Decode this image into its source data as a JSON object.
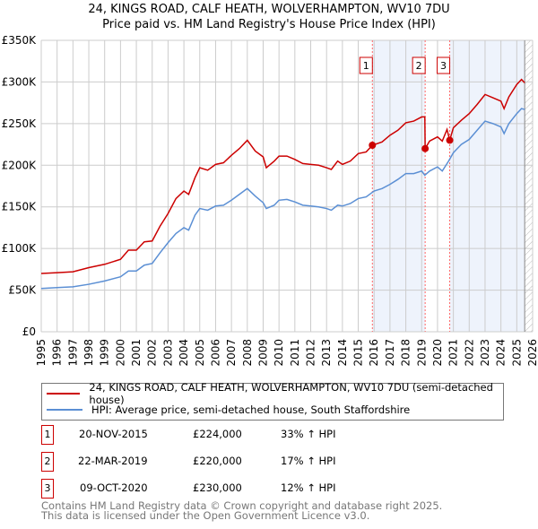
{
  "chart_data": {
    "type": "line",
    "title": "24, KINGS ROAD, CALF HEATH, WOLVERHAMPTON, WV10 7DU",
    "subtitle": "Price paid vs. HM Land Registry's House Price Index (HPI)",
    "xlim": [
      1995,
      2026
    ],
    "ylim": [
      0,
      350000
    ],
    "x_ticks": [
      "1995",
      "1996",
      "1997",
      "1998",
      "1999",
      "2000",
      "2001",
      "2002",
      "2003",
      "2004",
      "2005",
      "2006",
      "2007",
      "2008",
      "2009",
      "2010",
      "2011",
      "2012",
      "2013",
      "2014",
      "2015",
      "2016",
      "2017",
      "2018",
      "2019",
      "2020",
      "2021",
      "2022",
      "2023",
      "2024",
      "2025",
      "2026"
    ],
    "y_ticks": [
      {
        "v": 0,
        "label": "£0"
      },
      {
        "v": 50000,
        "label": "£50K"
      },
      {
        "v": 100000,
        "label": "£100K"
      },
      {
        "v": 150000,
        "label": "£150K"
      },
      {
        "v": 200000,
        "label": "£200K"
      },
      {
        "v": 250000,
        "label": "£250K"
      },
      {
        "v": 300000,
        "label": "£300K"
      },
      {
        "v": 350000,
        "label": "£350K"
      }
    ],
    "grid": true,
    "series": [
      {
        "name": "24, KINGS ROAD, CALF HEATH, WOLVERHAMPTON, WV10 7DU (semi-detached house)",
        "color": "#cc0000",
        "x": [
          1995,
          1996,
          1997,
          1998,
          1999,
          2000,
          2000.5,
          2001,
          2001.5,
          2002,
          2002.5,
          2003,
          2003.5,
          2004,
          2004.3,
          2004.7,
          2005,
          2005.5,
          2006,
          2006.5,
          2007,
          2007.5,
          2008,
          2008.5,
          2009,
          2009.2,
          2009.7,
          2010,
          2010.5,
          2011,
          2011.5,
          2012,
          2012.5,
          2013,
          2013.3,
          2013.7,
          2014,
          2014.5,
          2015,
          2015.5,
          2015.89,
          2016.5,
          2017,
          2017.5,
          2018,
          2018.5,
          2019,
          2019.2,
          2019.22,
          2019.5,
          2020,
          2020.3,
          2020.6,
          2020.77,
          2021,
          2021.5,
          2022,
          2022.5,
          2023,
          2023.5,
          2024,
          2024.2,
          2024.5,
          2025,
          2025.3,
          2025.5
        ],
        "y": [
          70,
          71,
          72,
          77,
          81,
          87,
          98,
          98,
          108,
          109,
          127,
          142,
          160,
          169,
          165,
          185,
          197,
          194,
          201,
          203,
          212,
          220,
          230,
          217,
          210,
          197,
          205,
          211,
          211,
          207,
          202,
          201,
          200,
          197,
          195,
          205,
          201,
          205,
          214,
          216,
          224,
          228,
          236,
          242,
          251,
          253,
          258,
          258,
          220,
          229,
          234,
          229,
          243,
          230,
          245,
          254,
          262,
          273,
          285,
          281,
          277,
          268,
          282,
          297,
          303,
          299
        ]
      },
      {
        "name": "HPI: Average price, semi-detached house, South Staffordshire",
        "color": "#5b8fd4",
        "x": [
          1995,
          1996,
          1997,
          1998,
          1999,
          2000,
          2000.5,
          2001,
          2001.5,
          2002,
          2002.5,
          2003,
          2003.5,
          2004,
          2004.3,
          2004.7,
          2005,
          2005.5,
          2006,
          2006.5,
          2007,
          2007.5,
          2008,
          2008.5,
          2009,
          2009.2,
          2009.7,
          2010,
          2010.5,
          2011,
          2011.5,
          2012,
          2012.5,
          2013,
          2013.3,
          2013.7,
          2014,
          2014.5,
          2015,
          2015.5,
          2016,
          2016.5,
          2017,
          2017.5,
          2018,
          2018.5,
          2019,
          2019.2,
          2019.5,
          2020,
          2020.3,
          2020.7,
          2021,
          2021.5,
          2022,
          2022.5,
          2023,
          2023.5,
          2024,
          2024.2,
          2024.5,
          2025,
          2025.3,
          2025.5
        ],
        "y": [
          52,
          53,
          54,
          57,
          61,
          66,
          73,
          73,
          80,
          82,
          95,
          107,
          118,
          125,
          122,
          140,
          148,
          146,
          151,
          152,
          158,
          165,
          172,
          163,
          155,
          148,
          152,
          158,
          159,
          156,
          152,
          151,
          150,
          148,
          146,
          152,
          151,
          154,
          160,
          162,
          169,
          172,
          177,
          183,
          190,
          190,
          193,
          188,
          193,
          198,
          193,
          205,
          215,
          225,
          231,
          242,
          253,
          250,
          246,
          238,
          250,
          262,
          268,
          267
        ]
      }
    ],
    "sales": [
      {
        "n": "1",
        "x": 2015.89,
        "y": 224000,
        "date": "20-NOV-2015",
        "price": "£224,000",
        "hpi": "33% ↑ HPI"
      },
      {
        "n": "2",
        "x": 2019.22,
        "y": 220000,
        "date": "22-MAR-2019",
        "price": "£220,000",
        "hpi": "17% ↑ HPI"
      },
      {
        "n": "3",
        "x": 2020.77,
        "y": 230000,
        "date": "09-OCT-2020",
        "price": "£230,000",
        "hpi": "12% ↑ HPI"
      }
    ],
    "legend_position": "below"
  },
  "footer": {
    "line1": "Contains HM Land Registry data © Crown copyright and database right 2025.",
    "line2": "This data is licensed under the Open Government Licence v3.0."
  }
}
